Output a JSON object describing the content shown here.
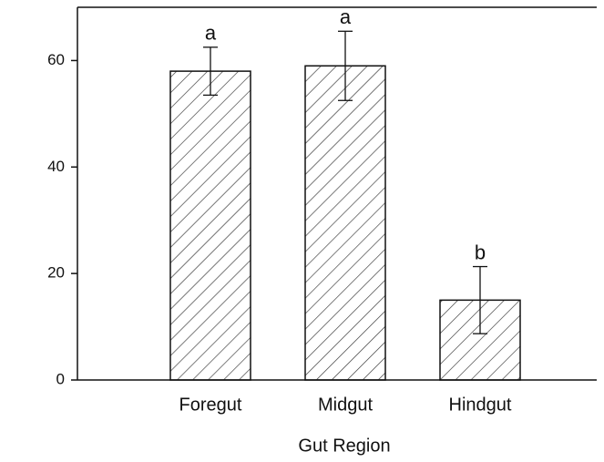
{
  "chart_data": {
    "type": "bar",
    "x_label": "Gut Region",
    "categories": [
      "Foregut",
      "Midgut",
      "Hindgut"
    ],
    "values": [
      58,
      59,
      15
    ],
    "errors": [
      4.5,
      6.5,
      6.3
    ],
    "annotations": [
      "a",
      "a",
      "b"
    ],
    "color": "#ffffff",
    "hatch": true,
    "ylim": [
      0,
      70
    ],
    "yticks": [
      0,
      20,
      40,
      60
    ],
    "grid": false
  }
}
